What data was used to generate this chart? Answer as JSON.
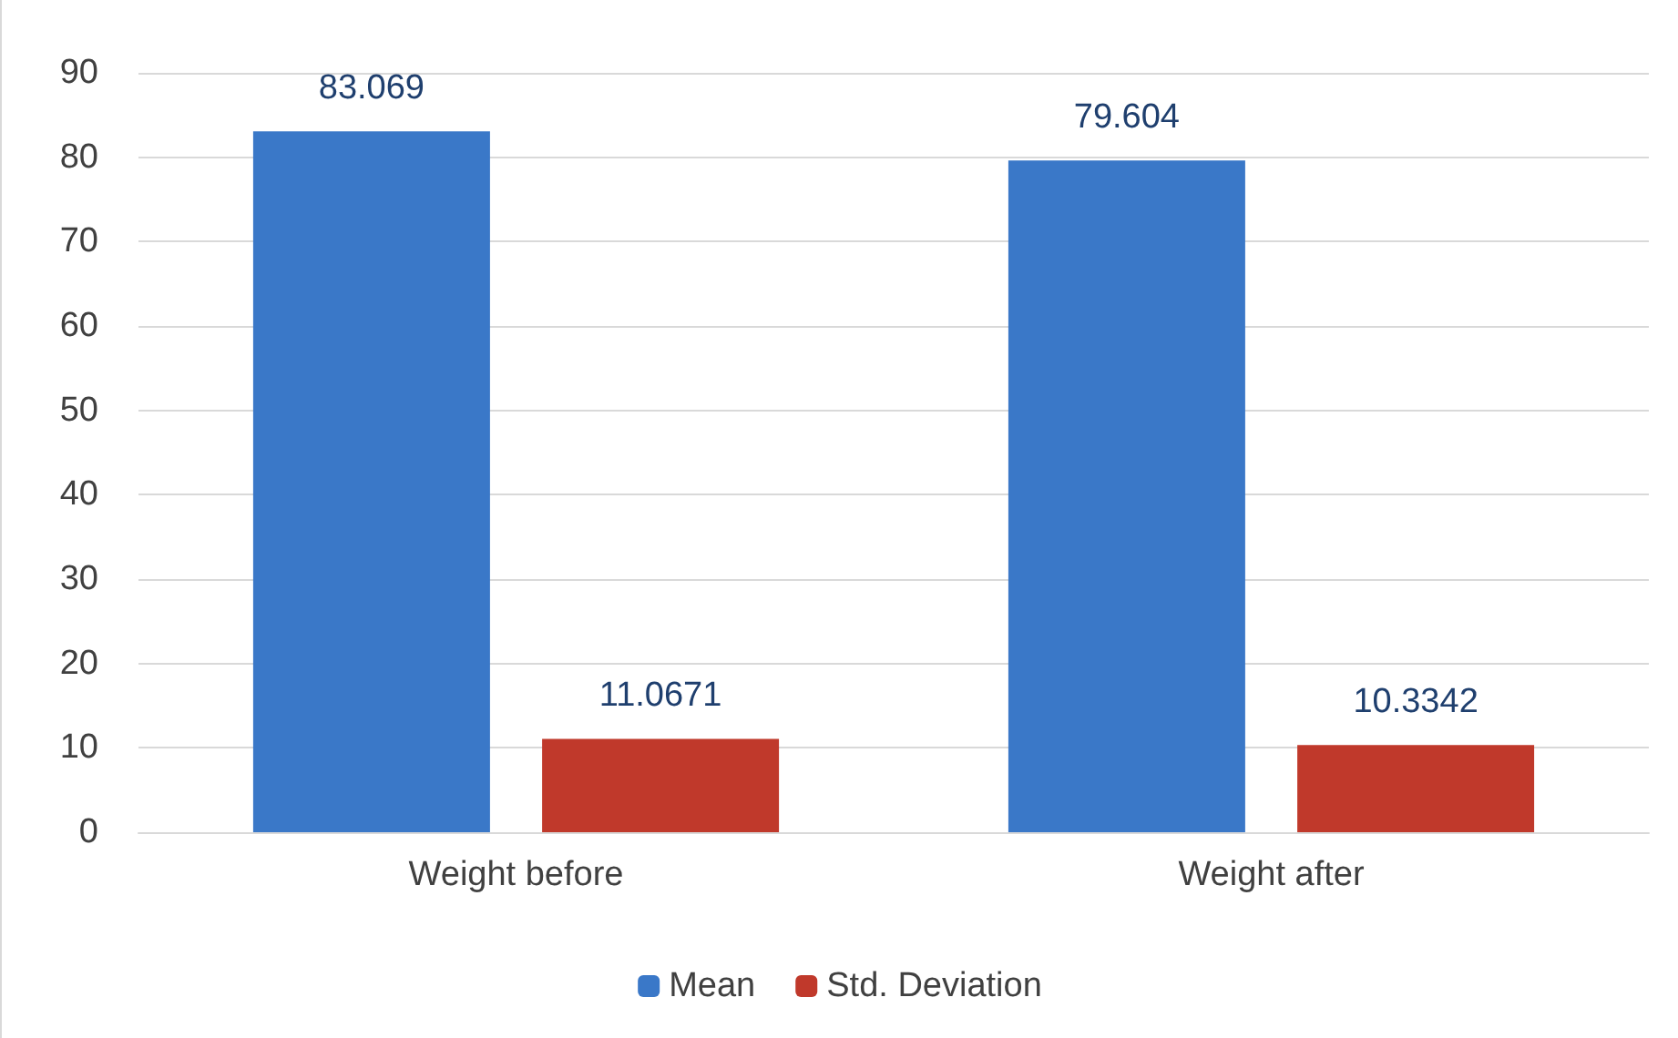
{
  "chart_data": {
    "type": "bar",
    "categories": [
      "Weight before",
      "Weight after"
    ],
    "series": [
      {
        "name": "Mean",
        "color": "#3a78c8",
        "values": [
          83.069,
          79.604
        ]
      },
      {
        "name": "Std. Deviation",
        "color": "#c0392b",
        "values": [
          11.0671,
          10.3342
        ]
      }
    ],
    "ylim": [
      0,
      90
    ],
    "yticks": [
      0,
      10,
      20,
      30,
      40,
      50,
      60,
      70,
      80,
      90
    ],
    "grid": "y",
    "legend": "bottom",
    "data_labels": true
  }
}
